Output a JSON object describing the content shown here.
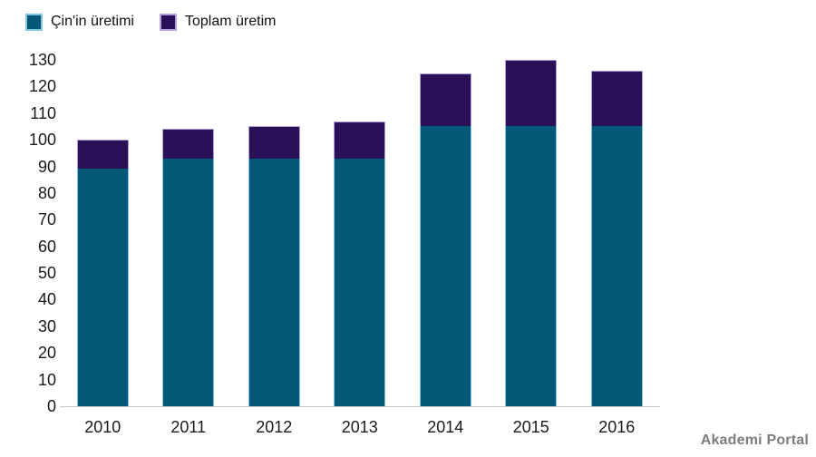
{
  "watermark": {
    "text": "Akademi Portal",
    "color": "#7d7d7d"
  },
  "axis": {
    "line_color": "#c9c9c9",
    "label_color": "#1a1a1a"
  },
  "chart_data": {
    "type": "bar",
    "stacked": true,
    "title": "",
    "xlabel": "",
    "ylabel": "",
    "categories": [
      "2010",
      "2011",
      "2012",
      "2013",
      "2014",
      "2015",
      "2016"
    ],
    "series": [
      {
        "name": "Çin'in üretimi",
        "values": [
          89,
          93,
          93,
          93,
          105,
          105,
          105
        ],
        "color": "#055878",
        "border_color": "#7fc8e0"
      },
      {
        "name": "Toplam üretim",
        "values": [
          100,
          104,
          105,
          107,
          125,
          130,
          126
        ],
        "color": "#2a1057",
        "border_color": "#b2a0da",
        "note": "values are cumulative totals; dark purple segment drawn from China's value up to the total"
      }
    ],
    "ylim": [
      0,
      130
    ],
    "ytick_step": 10,
    "grid": false,
    "legend_position": "top-left"
  }
}
